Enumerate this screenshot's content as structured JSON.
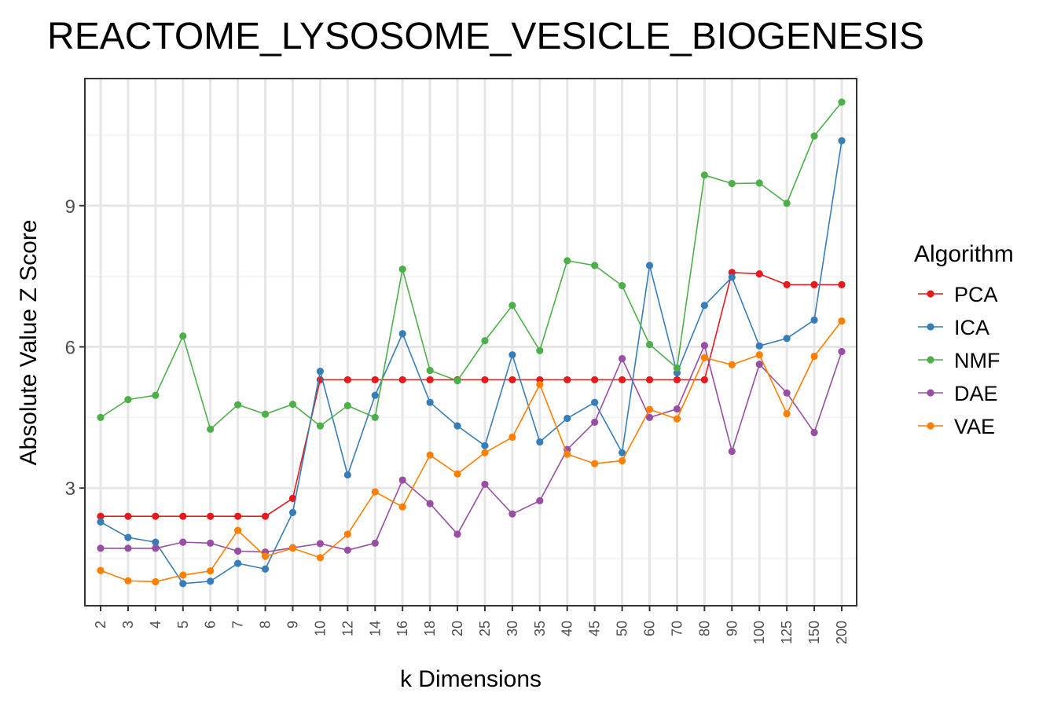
{
  "chart_data": {
    "type": "line",
    "title": "REACTOME_LYSOSOME_VESICLE_BIOGENESIS",
    "xlabel": "k Dimensions",
    "ylabel": "Absolute Value Z Score",
    "categories": [
      "2",
      "3",
      "4",
      "5",
      "6",
      "7",
      "8",
      "9",
      "10",
      "12",
      "14",
      "16",
      "18",
      "20",
      "25",
      "30",
      "35",
      "40",
      "45",
      "50",
      "60",
      "70",
      "80",
      "90",
      "100",
      "125",
      "150",
      "200"
    ],
    "ylim": [
      0.5,
      11.7
    ],
    "yticks": [
      3,
      6,
      9
    ],
    "grid": true,
    "legend": {
      "title": "Algorithm",
      "placement": "right"
    },
    "series": [
      {
        "name": "PCA",
        "color": "#E41A1C",
        "values": [
          2.4,
          2.4,
          2.4,
          2.4,
          2.4,
          2.4,
          2.4,
          2.78,
          5.3,
          5.3,
          5.3,
          5.3,
          5.3,
          5.3,
          5.3,
          5.3,
          5.3,
          5.3,
          5.3,
          5.3,
          5.3,
          5.3,
          5.3,
          7.58,
          7.55,
          7.32,
          7.32,
          7.32
        ]
      },
      {
        "name": "ICA",
        "color": "#377EB8",
        "values": [
          2.28,
          1.95,
          1.85,
          0.97,
          1.02,
          1.4,
          1.28,
          2.48,
          5.48,
          3.28,
          4.97,
          6.28,
          4.82,
          4.32,
          3.9,
          5.83,
          3.98,
          4.48,
          4.82,
          3.75,
          7.73,
          5.45,
          6.88,
          7.48,
          6.02,
          6.18,
          6.57,
          10.38
        ]
      },
      {
        "name": "NMF",
        "color": "#4DAF4A",
        "values": [
          4.5,
          4.88,
          4.97,
          6.23,
          4.25,
          4.77,
          4.57,
          4.78,
          4.32,
          4.75,
          4.5,
          7.65,
          5.5,
          5.28,
          6.13,
          6.88,
          5.92,
          7.83,
          7.73,
          7.3,
          6.05,
          5.55,
          9.65,
          9.47,
          9.48,
          9.05,
          10.48,
          11.2
        ]
      },
      {
        "name": "DAE",
        "color": "#984EA3",
        "values": [
          1.72,
          1.72,
          1.72,
          1.85,
          1.83,
          1.66,
          1.64,
          1.73,
          1.82,
          1.68,
          1.83,
          3.17,
          2.67,
          2.02,
          3.08,
          2.45,
          2.73,
          3.82,
          4.4,
          5.75,
          4.5,
          4.68,
          6.03,
          3.78,
          5.63,
          5.02,
          4.18,
          5.9
        ]
      },
      {
        "name": "VAE",
        "color": "#FF7F00",
        "values": [
          1.25,
          1.03,
          1.01,
          1.15,
          1.24,
          2.1,
          1.55,
          1.72,
          1.52,
          2.02,
          2.92,
          2.6,
          3.7,
          3.3,
          3.75,
          4.08,
          5.2,
          3.72,
          3.52,
          3.58,
          4.67,
          4.47,
          5.77,
          5.62,
          5.83,
          4.58,
          5.8,
          6.55
        ]
      }
    ]
  }
}
